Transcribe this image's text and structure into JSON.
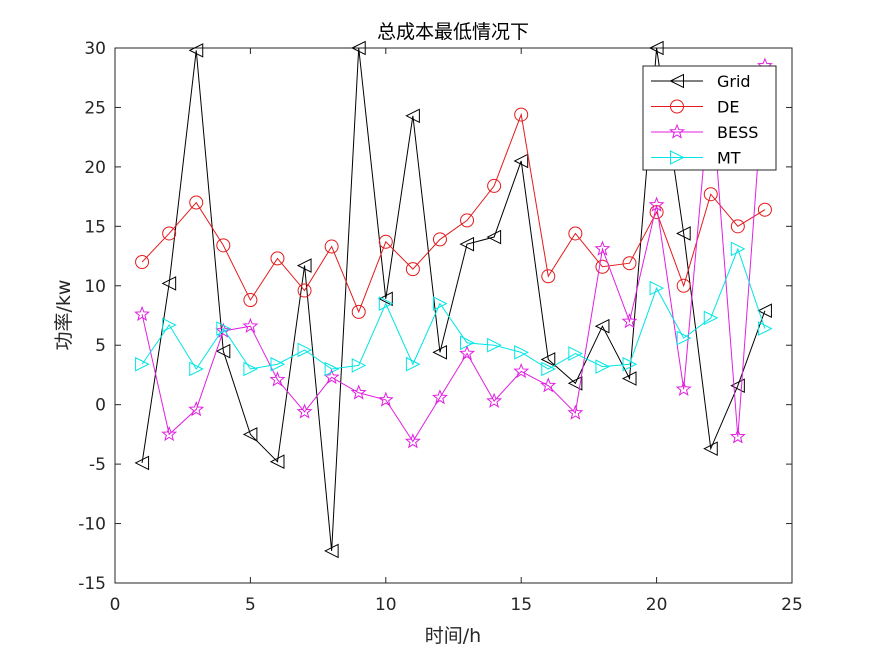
{
  "chart_data": {
    "type": "line",
    "title": "总成本最低情况下",
    "xlabel": "时间/h",
    "ylabel": "功率/kw",
    "xlim": [
      0,
      25
    ],
    "ylim": [
      -15,
      30
    ],
    "xticks": [
      0,
      5,
      10,
      15,
      20,
      25
    ],
    "yticks": [
      -15,
      -10,
      -5,
      0,
      5,
      10,
      15,
      20,
      25,
      30
    ],
    "x": [
      1,
      2,
      3,
      4,
      5,
      6,
      7,
      8,
      9,
      10,
      11,
      12,
      13,
      14,
      15,
      16,
      17,
      18,
      19,
      20,
      21,
      22,
      23,
      24
    ],
    "grid": false,
    "legend_position": "top-right",
    "series": [
      {
        "name": "Grid",
        "color": "#000000",
        "marker": "triangle-left",
        "values": [
          -4.9,
          10.2,
          29.8,
          4.5,
          -2.5,
          -4.8,
          11.7,
          -12.3,
          30.0,
          8.9,
          24.3,
          4.4,
          13.5,
          14.1,
          20.5,
          3.8,
          1.8,
          6.6,
          2.2,
          30.0,
          14.4,
          -3.7,
          1.6,
          7.9
        ]
      },
      {
        "name": "DE",
        "color": "#e41a1c",
        "marker": "circle",
        "values": [
          12.0,
          14.4,
          17.0,
          13.4,
          8.8,
          12.3,
          9.6,
          13.3,
          7.8,
          13.7,
          11.4,
          13.9,
          15.5,
          18.4,
          24.4,
          10.8,
          14.4,
          11.6,
          11.9,
          16.2,
          10.0,
          17.7,
          15.0,
          16.4
        ]
      },
      {
        "name": "BESS",
        "color": "#e020e0",
        "marker": "star",
        "values": [
          7.6,
          -2.5,
          -0.4,
          6.2,
          6.6,
          2.1,
          -0.6,
          2.3,
          1.0,
          0.4,
          -3.1,
          0.6,
          4.3,
          0.3,
          2.8,
          1.6,
          -0.7,
          13.1,
          7.0,
          16.8,
          1.3,
          27.0,
          -2.7,
          28.5
        ]
      },
      {
        "name": "MT",
        "color": "#00e5e5",
        "marker": "triangle-right",
        "values": [
          3.4,
          6.7,
          3.0,
          6.4,
          3.0,
          3.4,
          4.6,
          3.0,
          3.3,
          8.5,
          3.4,
          8.5,
          5.2,
          5.0,
          4.4,
          3.0,
          4.3,
          3.2,
          3.4,
          9.8,
          5.6,
          7.3,
          13.1,
          6.4
        ]
      }
    ]
  }
}
